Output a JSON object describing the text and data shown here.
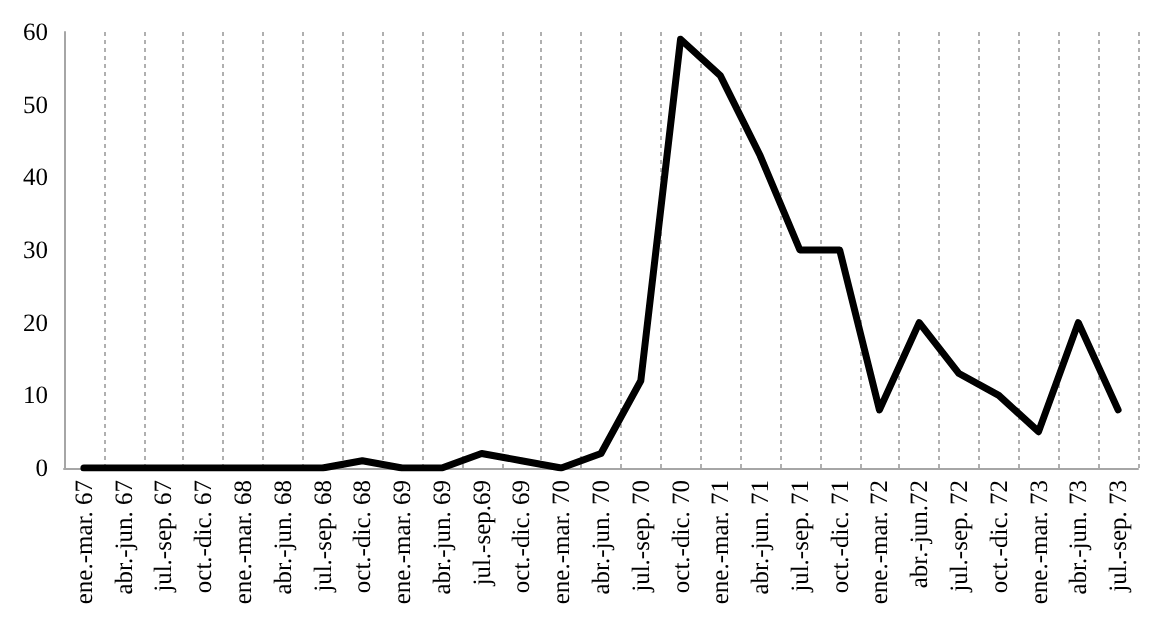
{
  "chart_data": {
    "type": "line",
    "categories": [
      "ene.-mar. 67",
      "abr.-jun. 67",
      "jul.-sep. 67",
      "oct.-dic. 67",
      "ene.-mar. 68",
      "abr.-jun. 68",
      "jul.-sep. 68",
      "oct.-dic. 68",
      "ene.-mar. 69",
      "abr.-jun. 69",
      "jul.-sep.69",
      "oct.-dic. 69",
      "ene.-mar. 70",
      "abr.-jun. 70",
      "jul.-sep. 70",
      "oct.-dic. 70",
      "ene.-mar. 71",
      "abr.-jun. 71",
      "jul.-sep. 71",
      "oct.-dic. 71",
      "ene.-mar. 72",
      "abr.-jun.72",
      "jul.-sep. 72",
      "oct.-dic. 72",
      "ene.-mar. 73",
      "abr.-jun. 73",
      "jul.-sep. 73"
    ],
    "series": [
      {
        "color": "#000000",
        "values": [
          0,
          0,
          0,
          0,
          0,
          0,
          0,
          1,
          0,
          0,
          2,
          1,
          0,
          2,
          12,
          59,
          54,
          43,
          30,
          30,
          8,
          20,
          13,
          10,
          5,
          20,
          8
        ]
      }
    ],
    "ylim": [
      0,
      60
    ],
    "yticks": [
      0,
      10,
      20,
      30,
      40,
      50,
      60
    ],
    "grid": "x",
    "marker": "none",
    "line_style": "solid"
  }
}
